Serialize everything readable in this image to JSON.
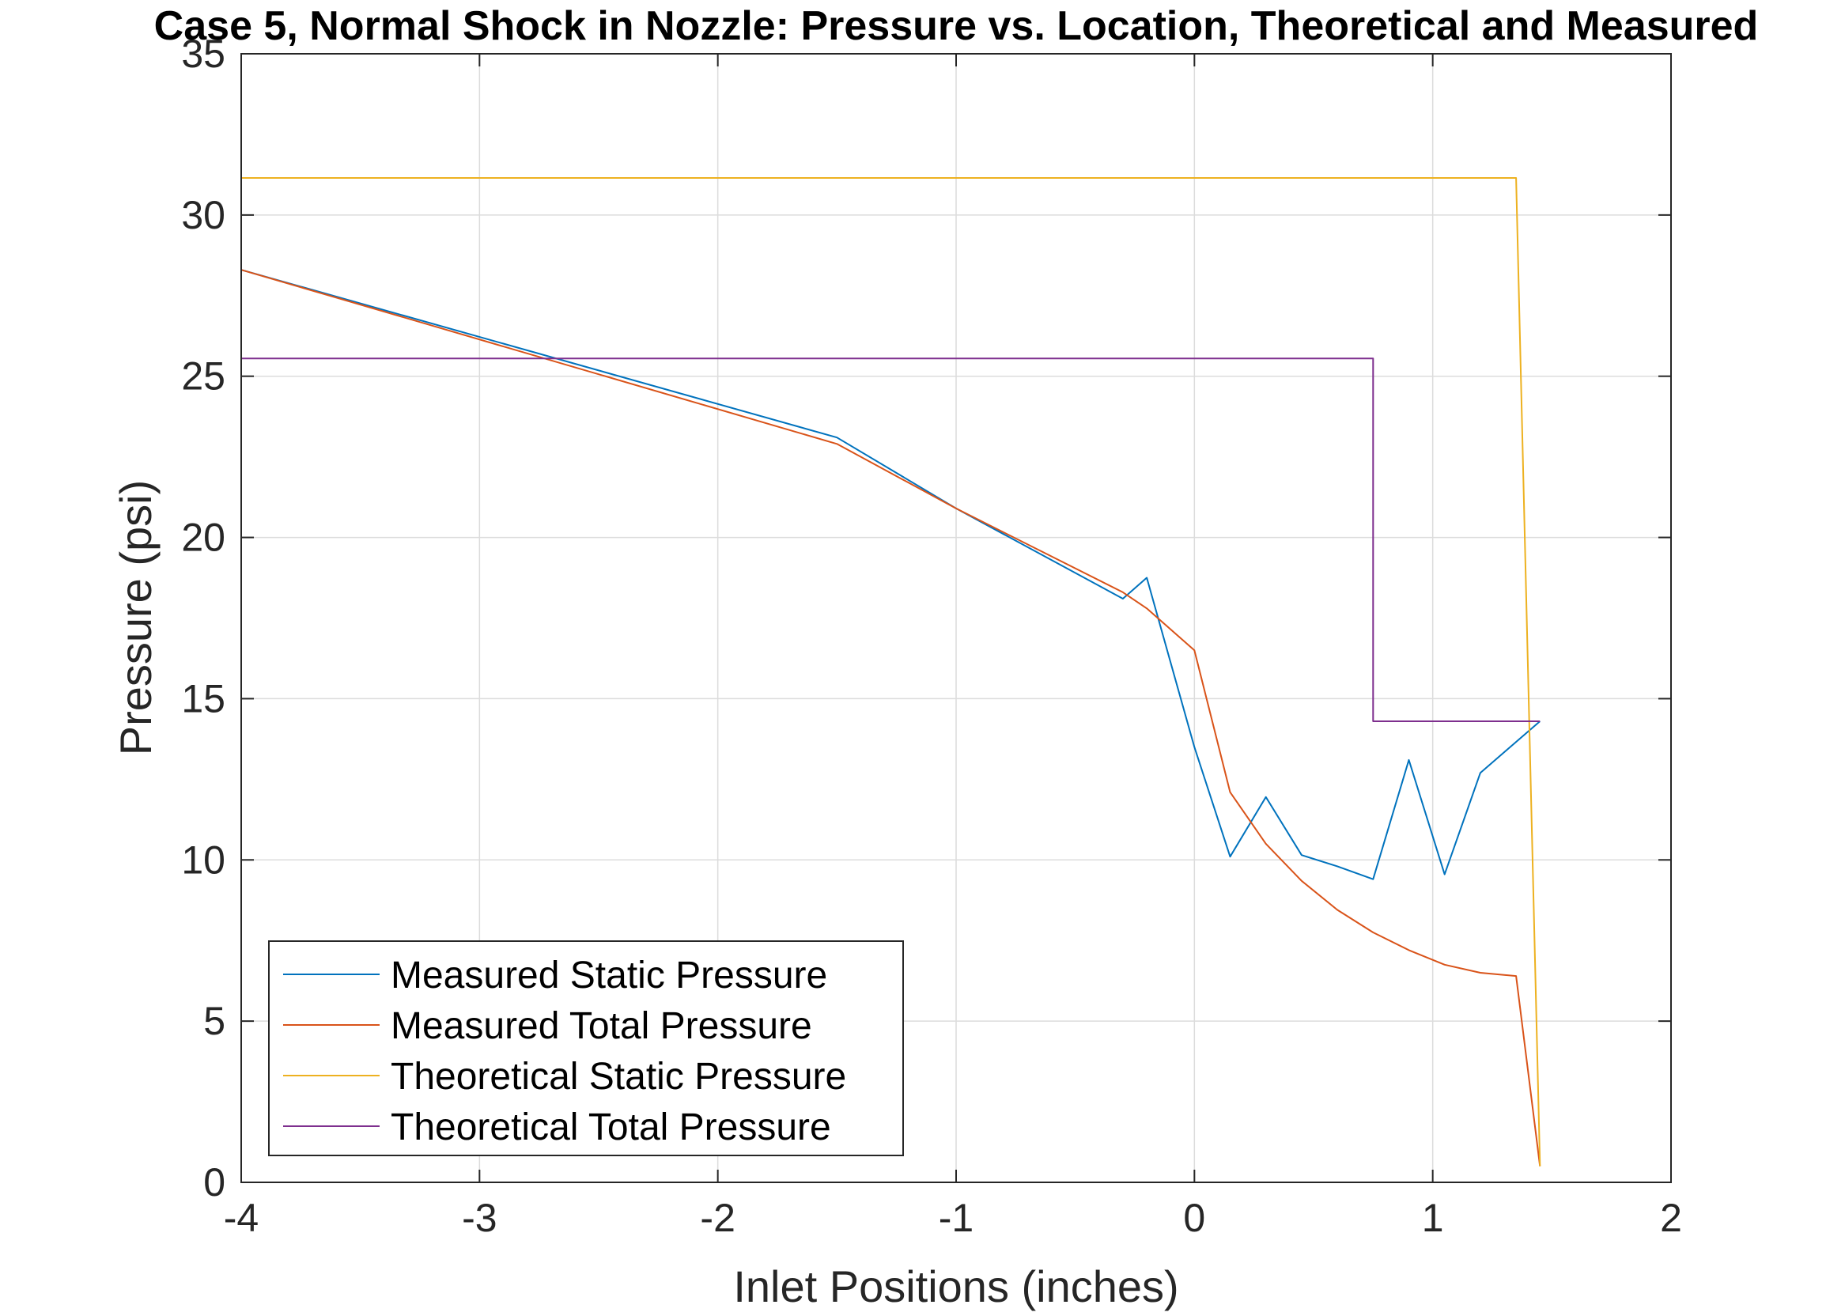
{
  "chart_data": {
    "type": "line",
    "title": "Case 5, Normal Shock in Nozzle: Pressure vs. Location,  Theoretical and Measured",
    "xlabel": "Inlet Positions (inches)",
    "ylabel": "Pressure (psi)",
    "xlim": [
      -4,
      2
    ],
    "ylim": [
      0,
      35
    ],
    "xticks": [
      -4,
      -3,
      -2,
      -1,
      0,
      1,
      2
    ],
    "yticks": [
      0,
      5,
      10,
      15,
      20,
      25,
      30,
      35
    ],
    "xtick_labels": [
      "-4",
      "-3",
      "-2",
      "-1",
      "0",
      "1",
      "2"
    ],
    "ytick_labels": [
      "0",
      "5",
      "10",
      "15",
      "20",
      "25",
      "30",
      "35"
    ],
    "grid": true,
    "legend_position": "bottom-left",
    "series": [
      {
        "name": "Measured Static Pressure",
        "color": "#0072BD",
        "x": [
          -4,
          -1.5,
          -1,
          -0.3,
          -0.2,
          0,
          0.15,
          0.3,
          0.45,
          0.6,
          0.75,
          0.9,
          1.05,
          1.2,
          1.45
        ],
        "y": [
          28.3,
          23.1,
          20.9,
          18.1,
          18.75,
          13.5,
          10.1,
          11.95,
          10.15,
          9.8,
          9.4,
          13.1,
          9.55,
          12.7,
          14.3
        ]
      },
      {
        "name": "Measured Total Pressure",
        "color": "#D95319",
        "x": [
          -4,
          -1.5,
          -1,
          -0.3,
          -0.2,
          0,
          0.15,
          0.3,
          0.45,
          0.6,
          0.75,
          0.9,
          1.05,
          1.2,
          1.35,
          1.45
        ],
        "y": [
          28.3,
          22.9,
          20.9,
          18.3,
          17.8,
          16.5,
          12.1,
          10.5,
          9.35,
          8.45,
          7.75,
          7.2,
          6.75,
          6.5,
          6.4,
          0.5
        ]
      },
      {
        "name": "Theoretical Static Pressure",
        "color": "#EDB120",
        "x": [
          -4,
          1.35,
          1.45
        ],
        "y": [
          31.15,
          31.15,
          0.5
        ]
      },
      {
        "name": "Theoretical Total Pressure",
        "color": "#7E2F8E",
        "x": [
          -4,
          0.75,
          0.75,
          1.45
        ],
        "y": [
          25.55,
          25.55,
          14.3,
          14.3
        ]
      }
    ]
  }
}
